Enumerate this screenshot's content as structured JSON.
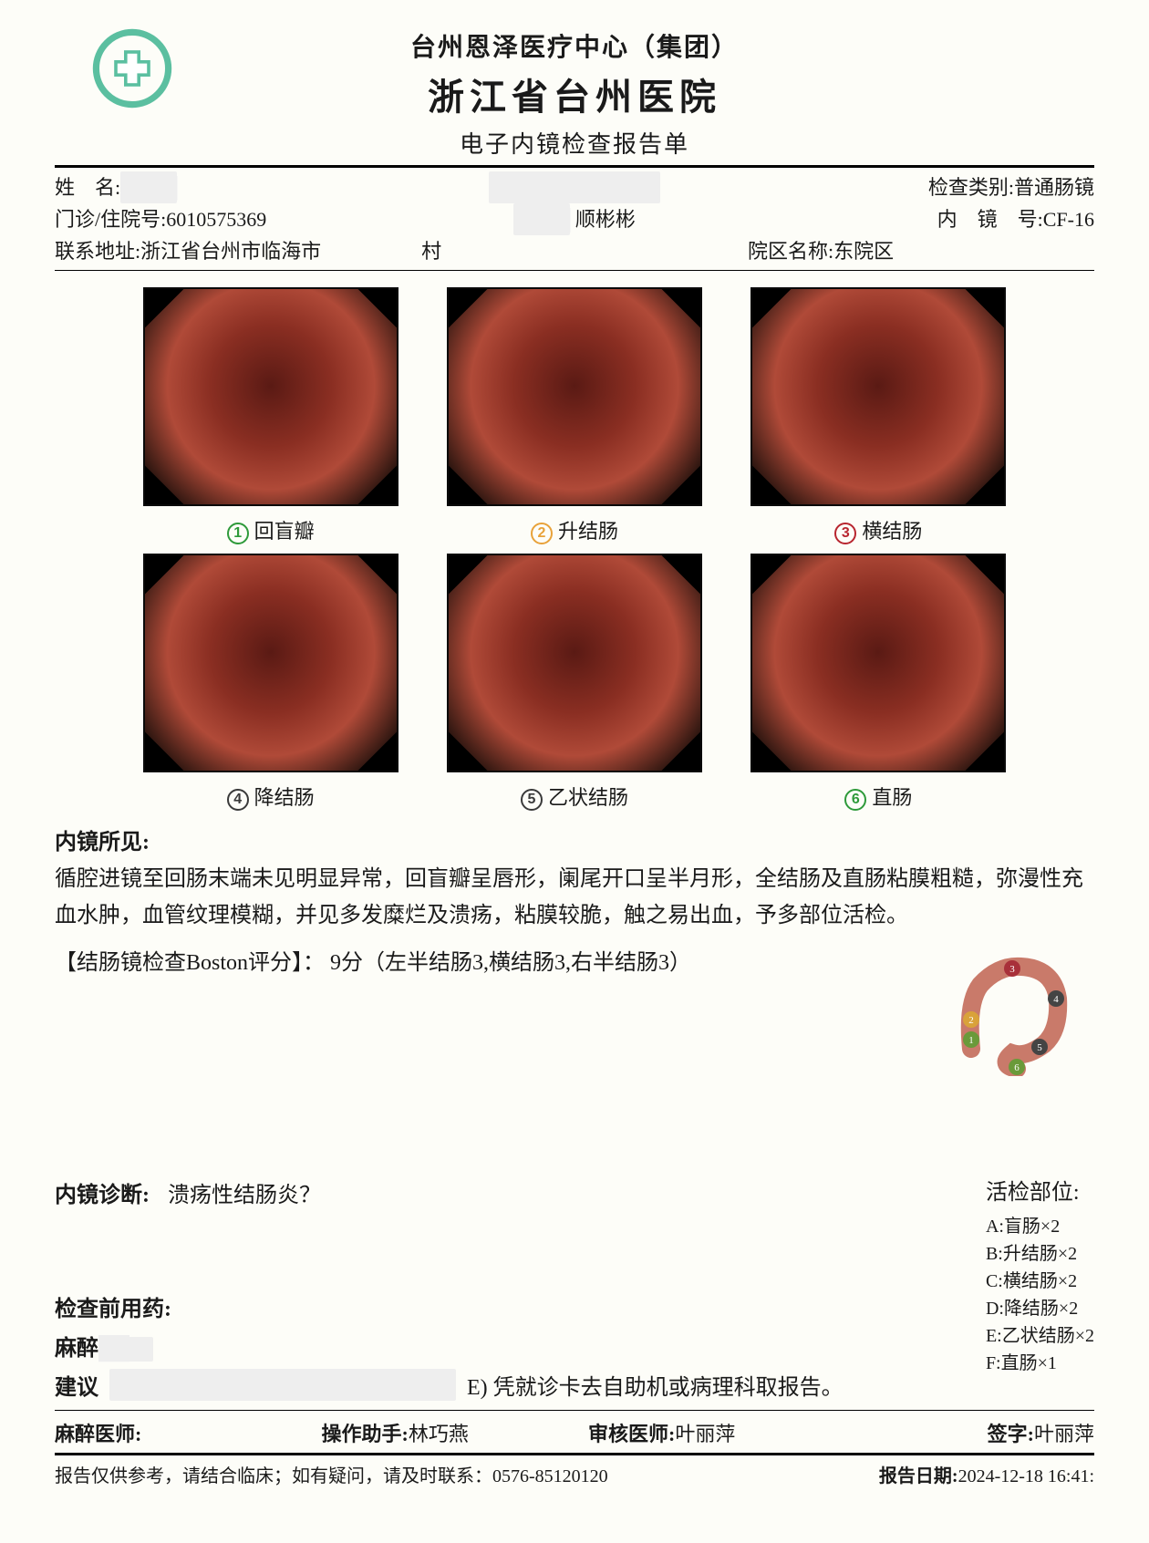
{
  "header": {
    "org": "台州恩泽医疗中心（集团）",
    "hospital": "浙江省台州医院",
    "title": "电子内镜检查报告单"
  },
  "info": {
    "name_label": "姓　名:",
    "name_value": "　　",
    "exam_type_label": "检查类别:",
    "exam_type_value": "普通肠镜",
    "visit_label": "门诊/住院号:",
    "visit_value": "6010575369",
    "scope_label": "内　镜　号:",
    "scope_value": "CF-16",
    "addr_label": "联系地址:",
    "addr_value": "浙江省台州市临海市　　　　　村",
    "campus_label": "院区名称:",
    "campus_value": "东院区",
    "mid_frag": "顺彬彬"
  },
  "thumbs": [
    {
      "num": "1",
      "label": "回盲瓣",
      "color": "#2e9a3a"
    },
    {
      "num": "2",
      "label": "升结肠",
      "color": "#e8a23a"
    },
    {
      "num": "3",
      "label": "横结肠",
      "color": "#b8252f"
    },
    {
      "num": "4",
      "label": "降结肠",
      "color": "#3a3a3a"
    },
    {
      "num": "5",
      "label": "乙状结肠",
      "color": "#3a3a3a"
    },
    {
      "num": "6",
      "label": "直肠",
      "color": "#2e9a3a"
    }
  ],
  "findings": {
    "head": "内镜所见:",
    "body": "循腔进镜至回肠末端未见明显异常，回盲瓣呈唇形，阑尾开口呈半月形，全结肠及直肠粘膜粗糙，弥漫性充血水肿，血管纹理模糊，并见多发糜烂及溃疡，粘膜较脆，触之易出血，予多部位活检。",
    "score": "【结肠镜检查Boston评分】：  9分（左半结肠3,横结肠3,右半结肠3）"
  },
  "diagnosis": {
    "label": "内镜诊断:",
    "value": "溃疡性结肠炎？"
  },
  "biopsy": {
    "head": "活检部位:",
    "items": [
      "A:盲肠×2",
      "B:升结肠×2",
      "C:横结肠×2",
      "D:降结肠×2",
      "E:乙状结肠×2",
      "F:直肠×1"
    ]
  },
  "premed": {
    "label": "检查前用药:"
  },
  "anes": {
    "label": "麻醉"
  },
  "advice": {
    "label": "建议",
    "tail": "E) 凭就诊卡去自助机或病理科取报告。"
  },
  "sign": {
    "anes_doc_label": "麻醉医师:",
    "assist_label": "操作助手:",
    "assist_value": "林巧燕",
    "review_label": "审核医师:",
    "review_value": "叶丽萍",
    "sig_label": "签字:",
    "sig_value": "叶丽萍"
  },
  "footer": {
    "note": "报告仅供参考，请结合临床；如有疑问，请及时联系：0576-85120120",
    "date_label": "报告日期:",
    "date_value": "2024-12-18  16:41:"
  },
  "colors": {
    "logo_ring": "#5bbfa0",
    "logo_cross": "#ffffff"
  }
}
